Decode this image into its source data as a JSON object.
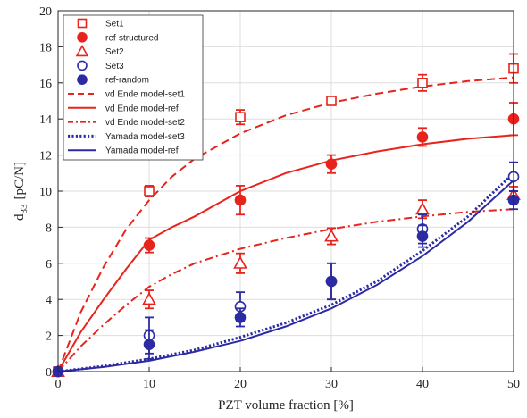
{
  "chart_data": {
    "type": "scatter",
    "xlabel": "PZT volume fraction [%]",
    "ylabel_main": "d",
    "ylabel_sub": "33",
    "ylabel_unit": "[pC/N]",
    "xlim": [
      0,
      50
    ],
    "ylim": [
      0,
      20
    ],
    "x_ticks": [
      "0",
      "10",
      "20",
      "30",
      "40",
      "50"
    ],
    "y_ticks": [
      "0",
      "2",
      "4",
      "6",
      "8",
      "10",
      "12",
      "14",
      "16",
      "18",
      "20"
    ],
    "grid": true,
    "legend_position": "top-left",
    "colors": {
      "red": "#e8231c",
      "blue": "#2c2ba3"
    },
    "marker_series": [
      {
        "name": "Set1",
        "marker": "square-open",
        "color": "red",
        "points": [
          [
            0,
            0,
            0.15
          ],
          [
            10,
            10,
            0.3
          ],
          [
            20,
            14.1,
            0.4
          ],
          [
            30,
            15,
            0.2
          ],
          [
            40,
            16,
            0.45
          ],
          [
            50,
            16.8,
            0.8
          ]
        ]
      },
      {
        "name": "ref-structured",
        "marker": "circle-filled",
        "color": "red",
        "points": [
          [
            0,
            0,
            0.15
          ],
          [
            10,
            7,
            0.4
          ],
          [
            20,
            9.5,
            0.8
          ],
          [
            30,
            11.5,
            0.5
          ],
          [
            40,
            13,
            0.5
          ],
          [
            50,
            14,
            0.9
          ]
        ]
      },
      {
        "name": "Set2",
        "marker": "triangle-open",
        "color": "red",
        "points": [
          [
            0,
            0,
            0.15
          ],
          [
            10,
            4,
            0.5
          ],
          [
            20,
            6,
            0.55
          ],
          [
            30,
            7.5,
            0.45
          ],
          [
            40,
            9,
            0.5
          ],
          [
            50,
            9.8,
            0.45
          ]
        ]
      },
      {
        "name": "Set3",
        "marker": "circle-open",
        "color": "blue",
        "points": [
          [
            0,
            0,
            0.15
          ],
          [
            10,
            2,
            1
          ],
          [
            20,
            3.6,
            0.8
          ],
          [
            30,
            5,
            1
          ],
          [
            40,
            7.9,
            0.8
          ],
          [
            50,
            10.8,
            0.8
          ]
        ]
      },
      {
        "name": "ref-random",
        "marker": "circle-filled",
        "color": "blue",
        "points": [
          [
            0,
            0,
            0.15
          ],
          [
            10,
            1.5,
            0.8
          ],
          [
            20,
            3,
            0.5
          ],
          [
            30,
            5,
            1
          ],
          [
            40,
            7.5,
            0.6
          ],
          [
            50,
            9.5,
            0.5
          ]
        ]
      }
    ],
    "line_series": [
      {
        "name": "vd Ende model-set1",
        "style": "dashed",
        "color": "red",
        "x": [
          0,
          2.5,
          5,
          7.5,
          10,
          12.5,
          15,
          20,
          25,
          30,
          35,
          40,
          45,
          50
        ],
        "y": [
          0,
          3.3,
          5.8,
          7.9,
          9.5,
          10.8,
          11.8,
          13.2,
          14.2,
          14.9,
          15.4,
          15.8,
          16.1,
          16.3
        ]
      },
      {
        "name": "vd Ende model-ref",
        "style": "solid",
        "color": "red",
        "x": [
          0,
          2.5,
          5,
          7.5,
          10,
          12.5,
          15,
          20,
          25,
          30,
          35,
          40,
          45,
          50
        ],
        "y": [
          0,
          2.2,
          4,
          5.7,
          7.3,
          8,
          8.6,
          10,
          11,
          11.7,
          12.2,
          12.6,
          12.9,
          13.1
        ]
      },
      {
        "name": "vd Ende model-set2",
        "style": "dashdot",
        "color": "red",
        "x": [
          0,
          2.5,
          5,
          7.5,
          10,
          12.5,
          15,
          20,
          25,
          30,
          35,
          40,
          45,
          50
        ],
        "y": [
          0,
          1.4,
          2.6,
          3.7,
          4.7,
          5.4,
          6,
          6.8,
          7.4,
          7.9,
          8.3,
          8.6,
          8.85,
          9
        ]
      },
      {
        "name": "Yamada model-set3",
        "style": "dotted",
        "color": "blue",
        "x": [
          0,
          5,
          10,
          15,
          20,
          25,
          30,
          35,
          40,
          45,
          50
        ],
        "y": [
          0,
          0.3,
          0.7,
          1.2,
          1.9,
          2.7,
          3.7,
          5,
          6.7,
          8.6,
          11
        ]
      },
      {
        "name": "Yamada model-ref",
        "style": "solid",
        "color": "blue",
        "x": [
          0,
          5,
          10,
          15,
          20,
          25,
          30,
          35,
          40,
          45,
          50
        ],
        "y": [
          0,
          0.25,
          0.6,
          1.1,
          1.7,
          2.5,
          3.5,
          4.8,
          6.4,
          8.3,
          10.6
        ]
      }
    ],
    "legend": [
      {
        "label": "Set1",
        "kind": "marker",
        "marker": "square-open",
        "color": "red"
      },
      {
        "label": "ref-structured",
        "kind": "marker",
        "marker": "circle-filled",
        "color": "red"
      },
      {
        "label": "Set2",
        "kind": "marker",
        "marker": "triangle-open",
        "color": "red"
      },
      {
        "label": "Set3",
        "kind": "marker",
        "marker": "circle-open",
        "color": "blue"
      },
      {
        "label": "ref-random",
        "kind": "marker",
        "marker": "circle-filled",
        "color": "blue"
      },
      {
        "label": "vd Ende model-set1",
        "kind": "line",
        "style": "dashed",
        "color": "red"
      },
      {
        "label": "vd Ende model-ref",
        "kind": "line",
        "style": "solid",
        "color": "red"
      },
      {
        "label": "vd Ende model-set2",
        "kind": "line",
        "style": "dashdot",
        "color": "red"
      },
      {
        "label": "Yamada model-set3",
        "kind": "line",
        "style": "dotted",
        "color": "blue"
      },
      {
        "label": "Yamada model-ref",
        "kind": "line",
        "style": "solid",
        "color": "blue"
      }
    ]
  }
}
